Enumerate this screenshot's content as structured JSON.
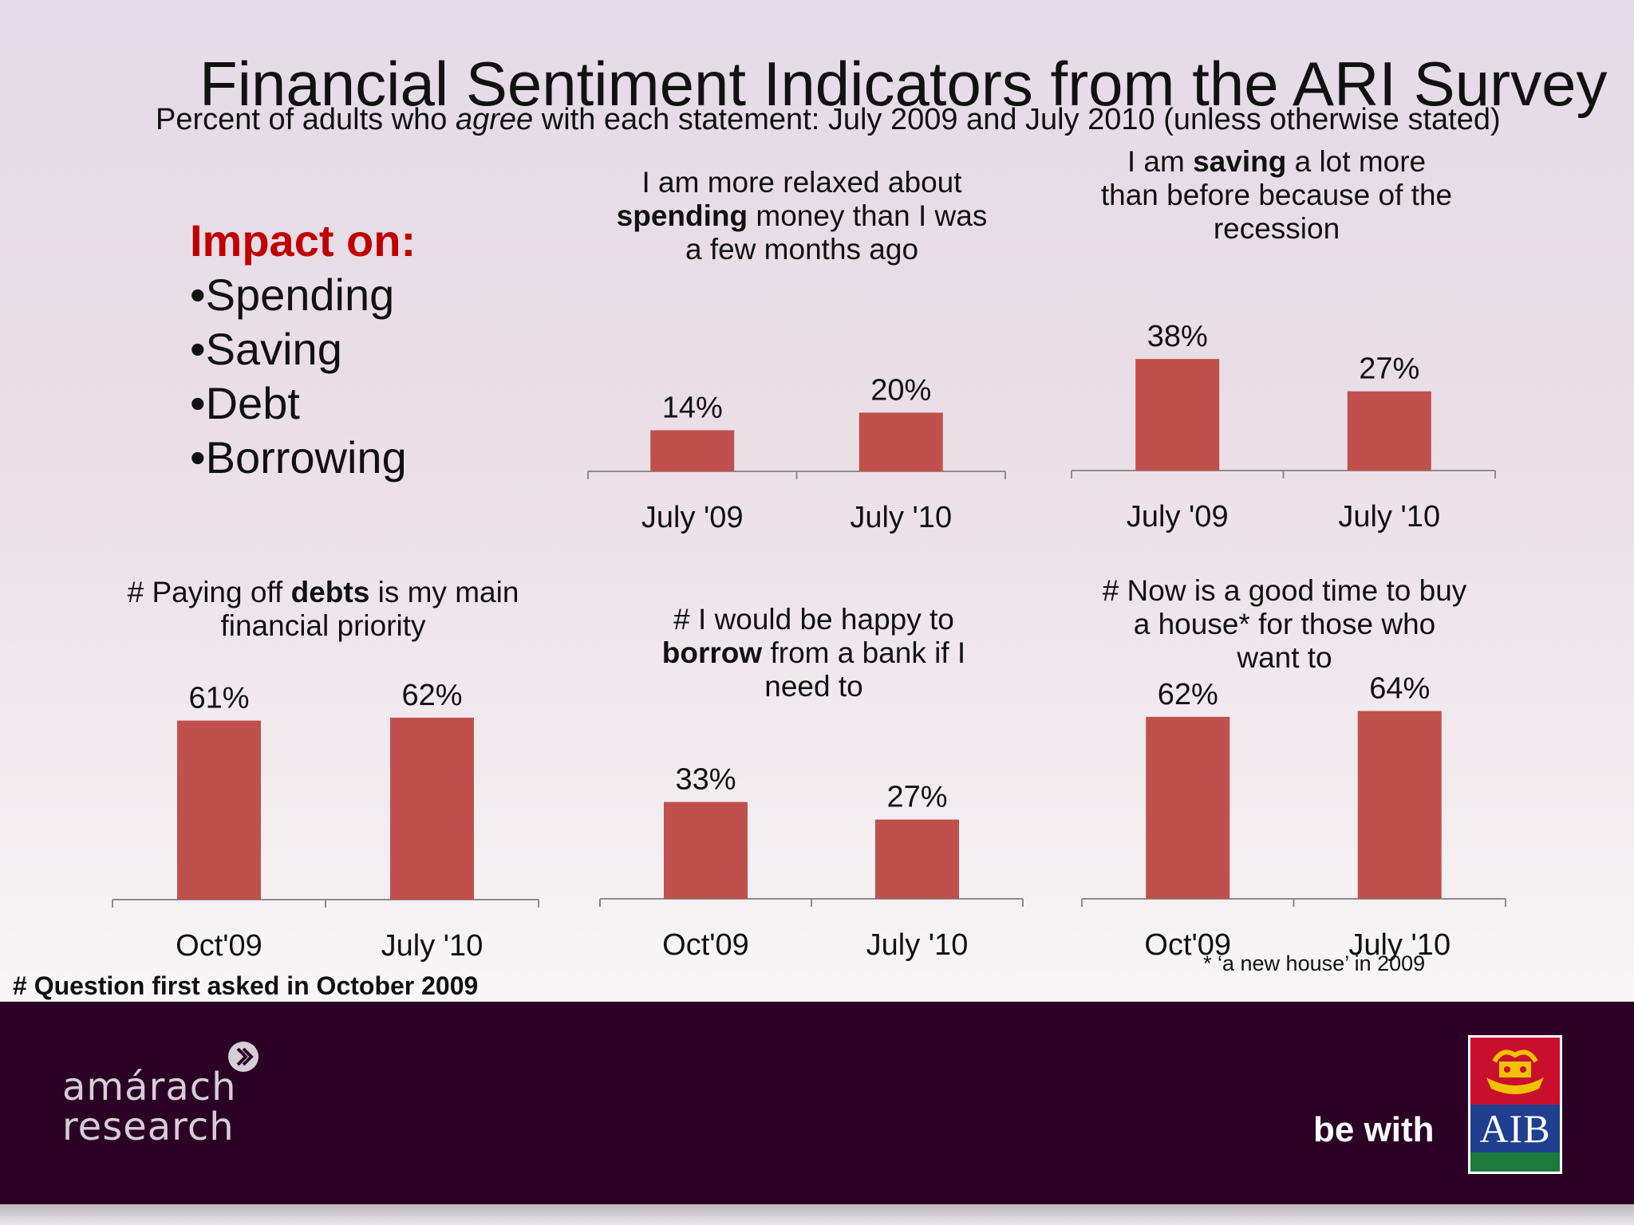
{
  "header": {
    "title": "Financial Sentiment Indicators from the ARI Survey",
    "subtitle_pre": "Percent of adults who ",
    "subtitle_em": "agree",
    "subtitle_post": " with each statement: July  2009 and July  2010 (unless otherwise stated)"
  },
  "impact": {
    "heading": "Impact on:",
    "items": [
      "•Spending",
      "•Saving",
      "•Debt",
      "•Borrowing"
    ]
  },
  "chart_data": [
    {
      "id": "spending",
      "type": "bar",
      "title_pre": "I am more relaxed about ",
      "title_bold": "spending",
      "title_post": " money than I was a few months ago",
      "categories": [
        "July '09",
        "July '10"
      ],
      "values": [
        14,
        20
      ],
      "value_labels": [
        "14%",
        "20%"
      ],
      "color": "#c0504d"
    },
    {
      "id": "saving",
      "type": "bar",
      "title_pre": "I am ",
      "title_bold": "saving",
      "title_post": " a lot more than before because of the recession",
      "categories": [
        "July '09",
        "July '10"
      ],
      "values": [
        38,
        27
      ],
      "value_labels": [
        "38%",
        "27%"
      ],
      "color": "#c0504d"
    },
    {
      "id": "debts",
      "type": "bar",
      "title_pre": "# Paying  off ",
      "title_bold": "debts",
      "title_post": " is my main financial priority",
      "categories": [
        "Oct'09",
        "July '10"
      ],
      "values": [
        61,
        62
      ],
      "value_labels": [
        "61%",
        "62%"
      ],
      "color": "#c0504d"
    },
    {
      "id": "borrow",
      "type": "bar",
      "title_pre": "# I would be happy to ",
      "title_bold": "borrow",
      "title_post": " from a bank if I need to",
      "categories": [
        "Oct'09",
        "July '10"
      ],
      "values": [
        33,
        27
      ],
      "value_labels": [
        "33%",
        "27%"
      ],
      "color": "#c0504d"
    },
    {
      "id": "house",
      "type": "bar",
      "title_pre": "# Now is a good time to buy a house* for those who want to",
      "title_bold": "",
      "title_post": "",
      "categories": [
        "Oct'09",
        "July '10"
      ],
      "values": [
        62,
        64
      ],
      "value_labels": [
        "62%",
        "64%"
      ],
      "color": "#c0504d",
      "footnote": "* ‘a new house’ in 2009"
    }
  ],
  "notes": {
    "question_first_asked": "# Question first asked in October 2009"
  },
  "footer": {
    "brand_left_line1": "amárach",
    "brand_left_line2": "research",
    "tagline": "be with",
    "brand_right": "AIB"
  }
}
